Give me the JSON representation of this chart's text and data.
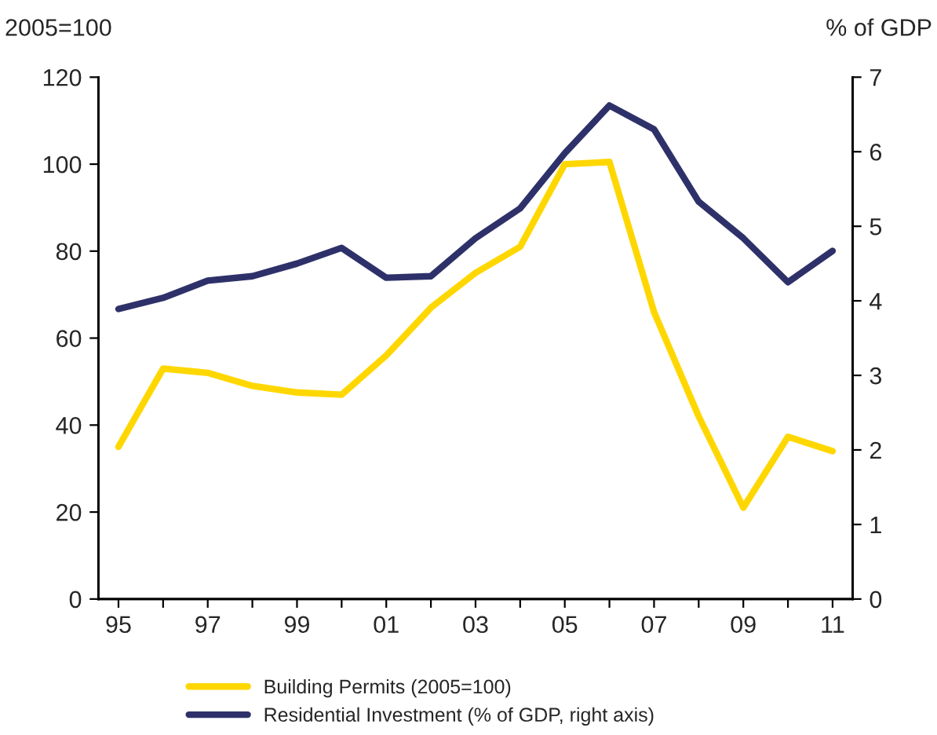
{
  "chart_data": {
    "type": "line",
    "ylabel": "2005=100",
    "y2label": "% of GDP",
    "categories": [
      "95",
      null,
      "97",
      null,
      "99",
      null,
      "01",
      null,
      "03",
      null,
      "05",
      null,
      "07",
      null,
      "09",
      null,
      "11"
    ],
    "series": [
      {
        "name": "Building Permits (2005=100)",
        "color": "#ffd700",
        "values": [
          35,
          53,
          52,
          49,
          47.5,
          47,
          56,
          67,
          75,
          81,
          100,
          100.5,
          66,
          42,
          21,
          37.3,
          34
        ]
      },
      {
        "name": "Residential Investment (% of GDP, right axis)",
        "color": "#2e3169",
        "axis": "y2",
        "values": [
          3.89,
          4.04,
          4.27,
          4.33,
          4.5,
          4.71,
          4.31,
          4.33,
          4.84,
          5.24,
          5.98,
          6.62,
          6.3,
          5.33,
          4.84,
          4.25,
          4.67
        ]
      }
    ],
    "ylim": [
      0,
      120
    ],
    "yticks": [
      0,
      20,
      40,
      60,
      80,
      100,
      120
    ],
    "y2lim": [
      0,
      7
    ],
    "y2ticks": [
      0,
      1,
      2,
      3,
      4,
      5,
      6,
      7
    ],
    "grid": false,
    "legend": "bottom",
    "marker": "none",
    "line_style": "solid"
  }
}
